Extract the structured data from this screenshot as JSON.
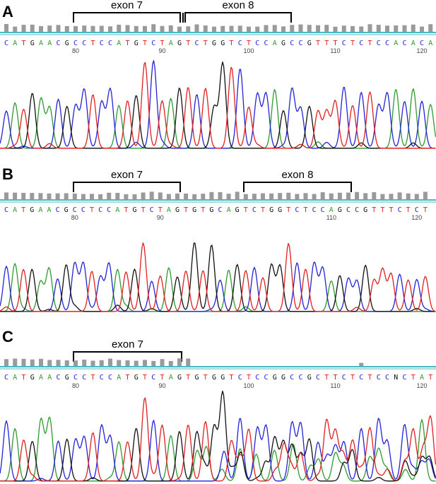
{
  "colors": {
    "A": "#2e9b2e",
    "C": "#2323d6",
    "G": "#111111",
    "T": "#e21f1f",
    "N": "#111111",
    "baseline": "#49b7c4",
    "qv": "#9a9a9a"
  },
  "panels": [
    {
      "letter": "A",
      "sequence": "CATGAACGCCTCCATGTCTAGTCTGGTCTCCAGCCGTTTCTCTCCACACA",
      "ticks": [
        "80",
        "90",
        "100",
        "110",
        "120"
      ],
      "exons": [
        {
          "label": "exon 7"
        },
        {
          "label": "exon 8"
        }
      ],
      "tall_peaks": [
        16,
        17,
        25,
        26,
        27
      ]
    },
    {
      "letter": "B",
      "sequence": "CATGAACGCCTCCATGTCTAGTGTGCAGTCTGGTCTCCAGCCGTTTCTCT",
      "ticks": [
        "80",
        "90",
        "110",
        "120"
      ],
      "exons": [
        {
          "label": "exon 7"
        },
        {
          "label": "exon 8"
        }
      ],
      "tall_peaks": [
        16,
        22,
        24,
        33
      ]
    },
    {
      "letter": "C",
      "sequence": "CATGAACGCCTCCATGTCTAGTGTGGTCTCCGGCCGCTTCTCTCCNCTAT",
      "ticks": [
        "80",
        "90",
        "100",
        "110",
        "120"
      ],
      "exons": [
        {
          "label": "exon 7"
        }
      ],
      "tall_peaks": [
        16,
        25
      ]
    }
  ]
}
